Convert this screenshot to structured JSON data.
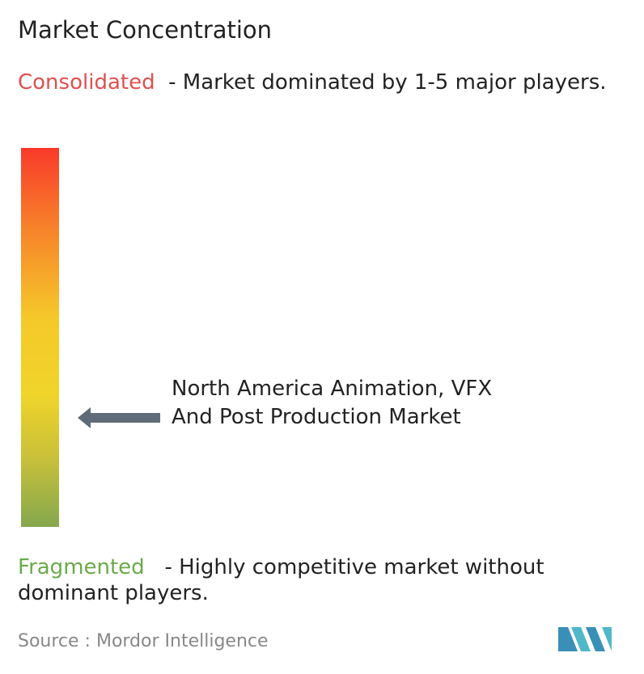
{
  "title": "Market Concentration",
  "consolidated": {
    "label": "Consolidated",
    "description": "- Market dominated by 1-5 major players."
  },
  "market": "North America Animation, VFX And Post Production Market",
  "fragmented": {
    "label": "Fragmented",
    "description": "- Highly competitive market without dominant players."
  },
  "source": "Source :  Mordor Intelligence"
}
